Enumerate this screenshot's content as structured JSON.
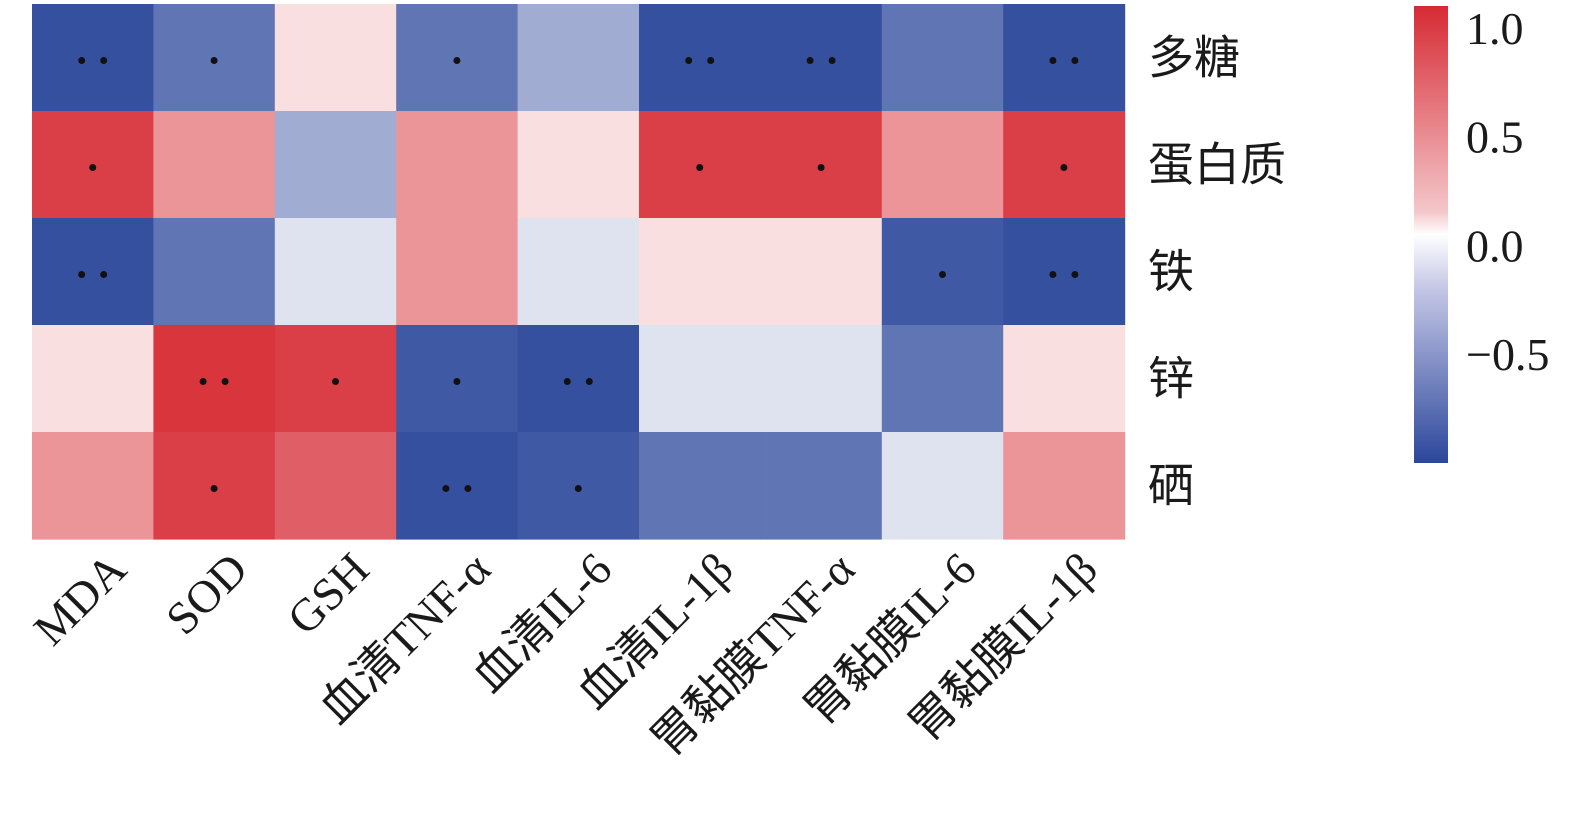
{
  "chart_data": {
    "type": "heatmap",
    "title": "",
    "xlabel": "",
    "ylabel": "",
    "columns": [
      "MDA",
      "SOD",
      "GSH",
      "血清TNF-α",
      "血清IL-6",
      "血清IL-1β",
      "胃黏膜TNF-α",
      "胃黏膜IL-6",
      "胃黏膜IL-1β"
    ],
    "rows": [
      "多糖",
      "蛋白质",
      "铁",
      "锌",
      "硒"
    ],
    "values": [
      [
        -0.95,
        -0.75,
        0.15,
        -0.75,
        -0.45,
        -0.95,
        -0.95,
        -0.75,
        -0.95
      ],
      [
        0.9,
        0.5,
        -0.45,
        0.5,
        0.15,
        0.9,
        0.9,
        0.5,
        0.9
      ],
      [
        -0.95,
        -0.75,
        -0.15,
        0.5,
        -0.15,
        0.15,
        0.15,
        -0.9,
        -0.95
      ],
      [
        0.15,
        0.95,
        0.9,
        -0.9,
        -0.95,
        -0.15,
        -0.15,
        -0.75,
        0.15
      ],
      [
        0.5,
        0.9,
        0.75,
        -0.95,
        -0.9,
        -0.75,
        -0.75,
        -0.15,
        0.5
      ]
    ],
    "significance": [
      [
        "**",
        "*",
        "",
        "*",
        "",
        "**",
        "**",
        "",
        "**"
      ],
      [
        "*",
        "",
        "",
        "",
        "",
        "*",
        "*",
        "",
        "*"
      ],
      [
        "**",
        "",
        "",
        "",
        "",
        "",
        "",
        "*",
        "**"
      ],
      [
        "",
        "**",
        "*",
        "*",
        "**",
        "",
        "",
        "",
        ""
      ],
      [
        "",
        "*",
        "",
        "**",
        "*",
        "",
        "",
        "",
        ""
      ]
    ],
    "colorbar": {
      "ticks": [
        1.0,
        0.5,
        0.0,
        -0.5
      ],
      "tick_labels": [
        "1.0",
        "0.5",
        "0.0",
        "−0.5"
      ],
      "range": [
        -1,
        1.1
      ],
      "colors": {
        "negative": "#2b479b",
        "zero": "#ffffff",
        "positive": "#d62a33"
      }
    },
    "legend_position": "top-right"
  }
}
